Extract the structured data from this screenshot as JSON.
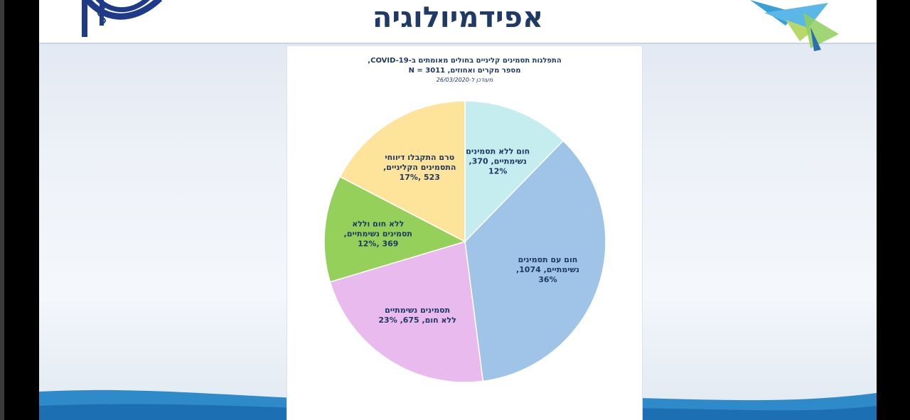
{
  "slide": {
    "title": "אפידמיולוגיה"
  },
  "chart_data": {
    "type": "pie",
    "title_line1": "התפלגות תסמינים קליניים בחולים מאומתים ב-COVID-19,",
    "title_line2": "מספר מקרים ואחוזים, N = 3011",
    "subtitle": "מעודכן ל-26/03/2020",
    "slices": [
      {
        "label_lines": [
          "חום ללא תסמינים",
          "נשימתיים, 370,",
          "12%"
        ],
        "value": 370,
        "percent": 12,
        "color": "#c5edef"
      },
      {
        "label_lines": [
          "חום עם תסמינים",
          "נשימתיים, 1074,",
          "36%"
        ],
        "value": 1074,
        "percent": 36,
        "color": "#9fc4e7"
      },
      {
        "label_lines": [
          "תסמינים נשימתיים",
          "ללא חום, 675, 23%"
        ],
        "value": 675,
        "percent": 23,
        "color": "#e8baee"
      },
      {
        "label_lines": [
          "ללא חום וללא",
          "תסמינים נשימתיים,",
          "369 ,12%"
        ],
        "value": 369,
        "percent": 12,
        "color": "#95d05a"
      },
      {
        "label_lines": [
          "טרם התקבלו דיווחי",
          "התסמינים הקליניים,",
          "523 ,17%"
        ],
        "value": 523,
        "percent": 17,
        "color": "#fde49a"
      }
    ]
  }
}
